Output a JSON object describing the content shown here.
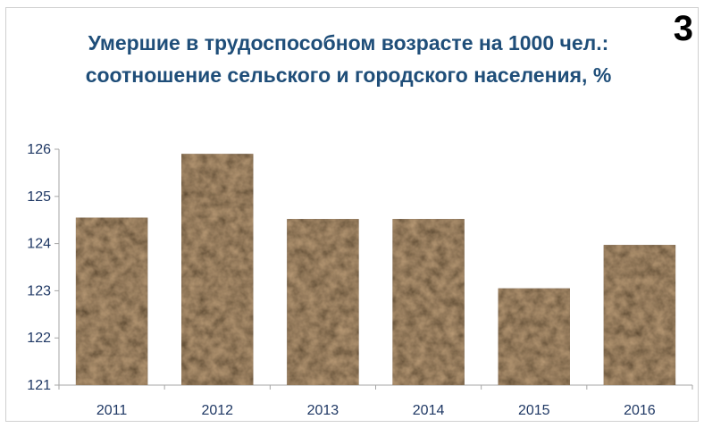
{
  "slide_number": "3",
  "chart_data": {
    "type": "bar",
    "title": "Умершие в трудоспособном возрасте на 1000 чел.: соотношение сельского и городского населения, %",
    "categories": [
      "2011",
      "2012",
      "2013",
      "2014",
      "2015",
      "2016"
    ],
    "values": [
      124.55,
      125.9,
      124.52,
      124.52,
      123.05,
      123.97
    ],
    "ylim": [
      121,
      126
    ],
    "yticks": [
      "121",
      "122",
      "123",
      "124",
      "125",
      "126"
    ],
    "xlabel": "",
    "ylabel": "",
    "grid": false,
    "legend": "none",
    "bar_texture": "dark brown marble",
    "colors": {
      "title": "#1f4e79",
      "ticks": "#1f3864",
      "axis": "#a6a6a6",
      "bar_base": "#4a3322"
    }
  }
}
